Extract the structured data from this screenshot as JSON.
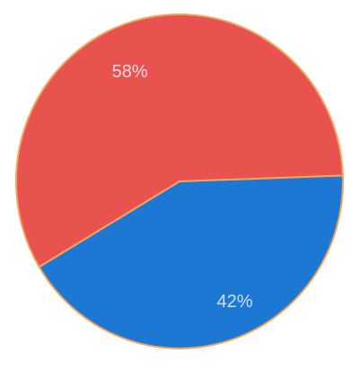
{
  "chart_data": {
    "type": "pie",
    "slices": [
      {
        "label": "58%",
        "value": 58,
        "color": "#e8534f"
      },
      {
        "label": "42%",
        "value": 42,
        "color": "#1c78d3"
      }
    ],
    "title": "",
    "legend": "none"
  },
  "colors": {
    "background": "#ffffff",
    "slice_border": "#f5a55a"
  }
}
